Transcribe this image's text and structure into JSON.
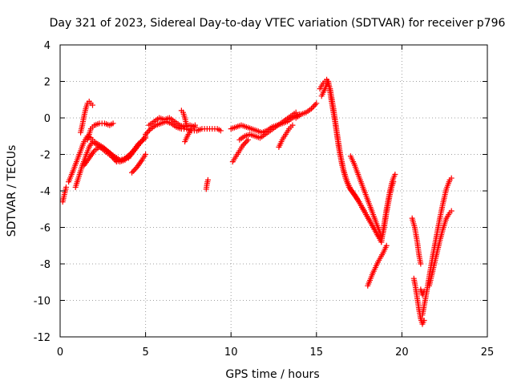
{
  "chart_data": {
    "type": "scatter",
    "title": "Day 321 of 2023, Sidereal Day-to-day VTEC variation (SDTVAR) for receiver p796",
    "xlabel": "GPS time / hours",
    "ylabel": "SDTVAR / TECUs",
    "xlim": [
      0,
      25
    ],
    "ylim": [
      -12,
      4
    ],
    "xticks": [
      "0",
      "5",
      "10",
      "15",
      "20",
      "25"
    ],
    "yticks": [
      "4",
      "2",
      "0",
      "-2",
      "-4",
      "-6",
      "-8",
      "-10",
      "-12"
    ],
    "grid": true,
    "marker": "+",
    "color": "#ff0000",
    "tracks": [
      {
        "x": [
          0.15,
          0.25,
          0.35
        ],
        "y": [
          -4.6,
          -4.2,
          -3.8
        ]
      },
      {
        "x": [
          0.5,
          0.8,
          1.0,
          1.2,
          1.4,
          1.6,
          1.8,
          2.0,
          2.5,
          3.0,
          3.5,
          4.0,
          4.5,
          5.0
        ],
        "y": [
          -3.5,
          -2.8,
          -2.3,
          -1.8,
          -1.3,
          -1.0,
          -1.1,
          -1.3,
          -1.6,
          -2.0,
          -2.3,
          -2.2,
          -1.6,
          -1.0
        ]
      },
      {
        "x": [
          0.9,
          1.1,
          1.3,
          1.5,
          1.7,
          1.9,
          2.2,
          2.6,
          3.0,
          3.3,
          3.7,
          4.2,
          4.6,
          5.0
        ],
        "y": [
          -3.8,
          -3.2,
          -2.6,
          -2.1,
          -1.6,
          -1.3,
          -1.5,
          -1.8,
          -2.1,
          -2.4,
          -2.3,
          -1.9,
          -1.4,
          -1.1
        ]
      },
      {
        "x": [
          1.2,
          1.3,
          1.4,
          1.5,
          1.6,
          1.7,
          1.8,
          1.9
        ],
        "y": [
          -0.8,
          -0.4,
          0.1,
          0.5,
          0.8,
          0.9,
          0.8,
          0.7
        ]
      },
      {
        "x": [
          1.6,
          1.8,
          2.0,
          2.3,
          2.6,
          2.9,
          3.1
        ],
        "y": [
          -1.2,
          -0.6,
          -0.4,
          -0.3,
          -0.3,
          -0.4,
          -0.3
        ]
      },
      {
        "x": [
          1.4,
          1.7,
          2.0,
          2.3,
          2.6,
          2.9,
          3.2,
          3.5,
          3.8,
          4.1,
          4.4
        ],
        "y": [
          -2.6,
          -2.2,
          -1.8,
          -1.6,
          -1.7,
          -1.9,
          -2.2,
          -2.4,
          -2.3,
          -2.0,
          -1.7
        ]
      },
      {
        "x": [
          4.2,
          4.5,
          4.8,
          5.0
        ],
        "y": [
          -3.0,
          -2.7,
          -2.3,
          -2.0
        ]
      },
      {
        "x": [
          5.0,
          5.3,
          5.6,
          5.9,
          6.2,
          6.5,
          6.8,
          7.1,
          7.4,
          7.7,
          8.0
        ],
        "y": [
          -0.9,
          -0.6,
          -0.4,
          -0.3,
          -0.2,
          -0.3,
          -0.5,
          -0.6,
          -0.6,
          -0.7,
          -0.7
        ]
      },
      {
        "x": [
          5.2,
          5.5,
          5.8,
          6.1,
          6.4,
          6.7,
          7.0,
          7.3,
          7.6,
          7.9
        ],
        "y": [
          -0.4,
          -0.2,
          0.0,
          -0.1,
          0.0,
          -0.2,
          -0.4,
          -0.5,
          -0.4,
          -0.5
        ]
      },
      {
        "x": [
          7.1,
          7.2,
          7.3,
          7.4
        ],
        "y": [
          0.4,
          0.3,
          0.0,
          -0.4
        ]
      },
      {
        "x": [
          7.3,
          7.5,
          7.7,
          7.9
        ],
        "y": [
          -1.3,
          -0.9,
          -0.6,
          -0.4
        ]
      },
      {
        "x": [
          8.0,
          8.3,
          8.6,
          8.9,
          9.2,
          9.4
        ],
        "y": [
          -0.7,
          -0.6,
          -0.6,
          -0.6,
          -0.6,
          -0.7
        ]
      },
      {
        "x": [
          8.55,
          8.6,
          8.65
        ],
        "y": [
          -3.9,
          -3.6,
          -3.4
        ]
      },
      {
        "x": [
          10.1,
          10.3,
          10.5,
          10.7,
          11.0
        ],
        "y": [
          -2.4,
          -2.1,
          -1.8,
          -1.5,
          -1.2
        ]
      },
      {
        "x": [
          10.0,
          10.3,
          10.6,
          10.9,
          11.2,
          11.5,
          11.8,
          12.1,
          12.4,
          12.7,
          13.0,
          13.3,
          13.6,
          14.0
        ],
        "y": [
          -0.6,
          -0.5,
          -0.4,
          -0.5,
          -0.6,
          -0.7,
          -0.8,
          -0.7,
          -0.5,
          -0.4,
          -0.3,
          -0.2,
          0.0,
          0.2
        ]
      },
      {
        "x": [
          10.5,
          10.8,
          11.1,
          11.4,
          11.7,
          12.0,
          12.3,
          12.6,
          12.9,
          13.2,
          13.5,
          13.8
        ],
        "y": [
          -1.2,
          -1.0,
          -0.9,
          -1.0,
          -1.1,
          -0.9,
          -0.7,
          -0.5,
          -0.3,
          -0.1,
          0.1,
          0.3
        ]
      },
      {
        "x": [
          12.8,
          13.0,
          13.2,
          13.4,
          13.6
        ],
        "y": [
          -1.6,
          -1.2,
          -0.9,
          -0.6,
          -0.4
        ]
      },
      {
        "x": [
          13.8,
          14.1,
          14.4,
          14.7,
          15.0
        ],
        "y": [
          0.0,
          0.2,
          0.3,
          0.5,
          0.8
        ]
      },
      {
        "x": [
          15.2,
          15.4,
          15.6,
          15.8,
          16.0,
          16.2,
          16.4,
          16.6,
          16.8,
          17.0,
          17.3,
          17.6,
          17.9,
          18.2,
          18.5,
          18.8
        ],
        "y": [
          1.6,
          1.9,
          2.1,
          1.6,
          0.5,
          -0.8,
          -2.0,
          -2.9,
          -3.5,
          -3.9,
          -4.3,
          -4.8,
          -5.3,
          -5.8,
          -6.3,
          -6.8
        ]
      },
      {
        "x": [
          15.3,
          15.5,
          15.7,
          15.9,
          16.1,
          16.3,
          16.5,
          16.7,
          16.9,
          17.2,
          17.5,
          17.8,
          18.1,
          18.4,
          18.7
        ],
        "y": [
          1.2,
          1.6,
          2.0,
          0.8,
          -0.3,
          -1.6,
          -2.6,
          -3.3,
          -3.8,
          -4.2,
          -4.6,
          -5.1,
          -5.6,
          -6.1,
          -6.6
        ]
      },
      {
        "x": [
          17.0,
          17.2,
          17.4,
          17.6,
          17.8,
          18.0,
          18.2,
          18.4,
          18.6,
          18.8
        ],
        "y": [
          -2.1,
          -2.5,
          -3.0,
          -3.5,
          -4.0,
          -4.5,
          -5.0,
          -5.5,
          -6.0,
          -6.5
        ]
      },
      {
        "x": [
          18.0,
          18.3,
          18.6,
          18.9,
          19.1
        ],
        "y": [
          -9.2,
          -8.5,
          -7.9,
          -7.4,
          -7.0
        ]
      },
      {
        "x": [
          18.8,
          18.9,
          19.0,
          19.1,
          19.2,
          19.3,
          19.4,
          19.5,
          19.6
        ],
        "y": [
          -6.8,
          -6.2,
          -5.6,
          -5.0,
          -4.5,
          -4.0,
          -3.6,
          -3.3,
          -3.1
        ]
      },
      {
        "x": [
          18.9,
          19.0,
          19.1,
          19.2,
          19.3,
          19.4,
          19.5
        ],
        "y": [
          -6.3,
          -5.8,
          -5.2,
          -4.7,
          -4.2,
          -3.8,
          -3.5
        ]
      },
      {
        "x": [
          20.7,
          20.8,
          20.9,
          21.0,
          21.1,
          21.2,
          21.3
        ],
        "y": [
          -8.8,
          -9.3,
          -9.9,
          -10.5,
          -11.0,
          -11.3,
          -11.1
        ]
      },
      {
        "x": [
          20.6,
          20.75,
          20.9,
          21.0,
          21.1
        ],
        "y": [
          -5.5,
          -6.0,
          -6.8,
          -7.5,
          -8.0
        ]
      },
      {
        "x": [
          21.2,
          21.4,
          21.6,
          21.8,
          22.0,
          22.2,
          22.4,
          22.6,
          22.8,
          22.9
        ],
        "y": [
          -10.8,
          -9.8,
          -8.7,
          -7.6,
          -6.6,
          -5.6,
          -4.7,
          -3.9,
          -3.4,
          -3.3
        ]
      },
      {
        "x": [
          21.6,
          21.8,
          22.0,
          22.2,
          22.4,
          22.6,
          22.8,
          22.9
        ],
        "y": [
          -9.2,
          -8.4,
          -7.6,
          -6.8,
          -6.1,
          -5.5,
          -5.2,
          -5.1
        ]
      },
      {
        "x": [
          21.1,
          21.2,
          21.3
        ],
        "y": [
          -9.4,
          -9.7,
          -9.5
        ]
      }
    ]
  }
}
